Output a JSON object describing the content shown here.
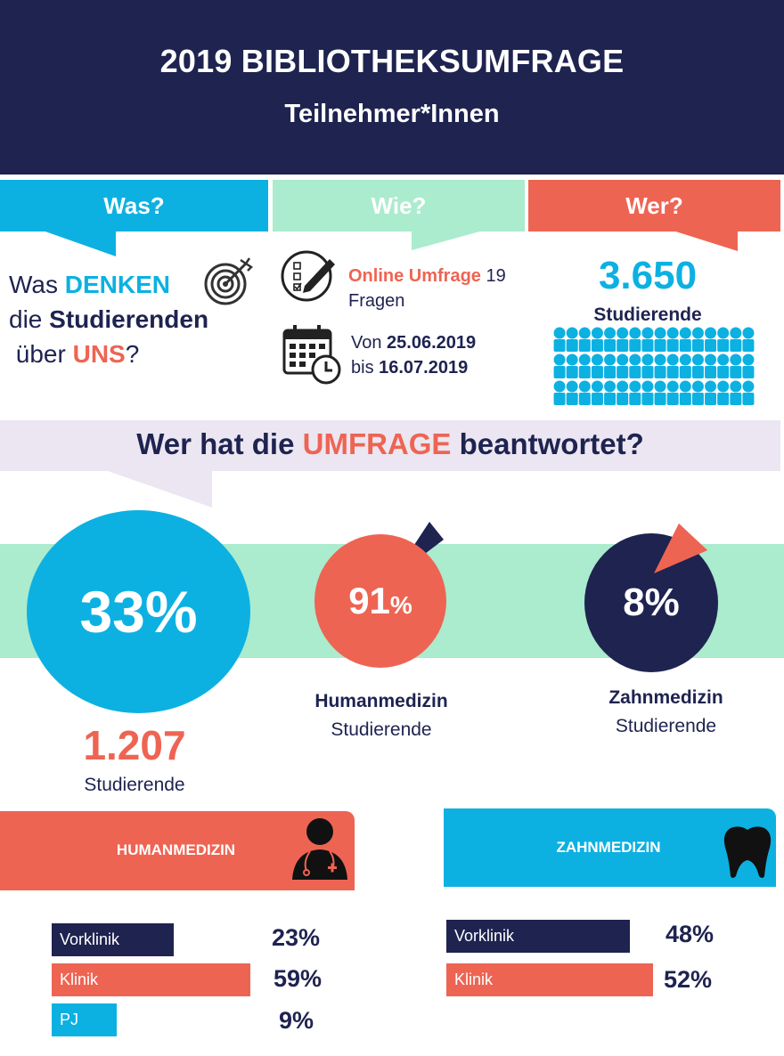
{
  "header": {
    "title": "2019 BIBLIOTHEKSUMFRAGE",
    "subtitle": "Teilnehmer*Innen"
  },
  "tabs": {
    "was": "Was?",
    "wie": "Wie?",
    "wer": "Wer?"
  },
  "was": {
    "line1_a": "Was ",
    "line1_b": "DENKEN",
    "line2_a": "die ",
    "line2_b": "Studierenden",
    "line3_a": " über ",
    "line3_b": "UNS",
    "line3_c": "?"
  },
  "wie": {
    "online_label": "Online Umfrage",
    "online_count": " 19",
    "online_unit": "Fragen",
    "from_label": "Von ",
    "from_date": "25.06.2019",
    "to_label": "bis ",
    "to_date": "16.07.2019"
  },
  "wer": {
    "number": "3.650",
    "label": "Studierende"
  },
  "question": {
    "part1": "Wer hat die ",
    "part2": "UMFRAGE",
    "part3": " beantwortet?"
  },
  "participation": {
    "total_pct": "33%",
    "total_number": "1.207",
    "total_label": "Studierende",
    "human_pct_num": "91",
    "human_pct_sign": "%",
    "human_name": "Humanmedizin",
    "human_label": "Studierende",
    "zahn_pct": "8%",
    "zahn_name": "Zahnmedizin",
    "zahn_label": "Studierende"
  },
  "sections": {
    "human": {
      "title": "HUMANMEDIZIN",
      "bars": [
        {
          "label": "Vorklinik",
          "pct": "23%",
          "value": 23
        },
        {
          "label": "Klinik",
          "pct": "59%",
          "value": 59
        },
        {
          "label": "PJ",
          "pct": "9%",
          "value": 9
        }
      ]
    },
    "zahn": {
      "title": "ZAHNMEDIZIN",
      "bars": [
        {
          "label": "Vorklinik",
          "pct": "48%",
          "value": 48
        },
        {
          "label": "Klinik",
          "pct": "52%",
          "value": 52
        }
      ]
    }
  },
  "colors": {
    "navy": "#1e2350",
    "blue": "#0cb1e2",
    "mint": "#abebce",
    "coral": "#ee6453",
    "lavender": "#ebe6f1"
  },
  "icons": {
    "target": "target-icon",
    "checklist": "checklist-pencil-icon",
    "calendar": "calendar-clock-icon",
    "people": "people-grid-icon",
    "doctor": "doctor-icon",
    "tooth": "tooth-icon"
  }
}
